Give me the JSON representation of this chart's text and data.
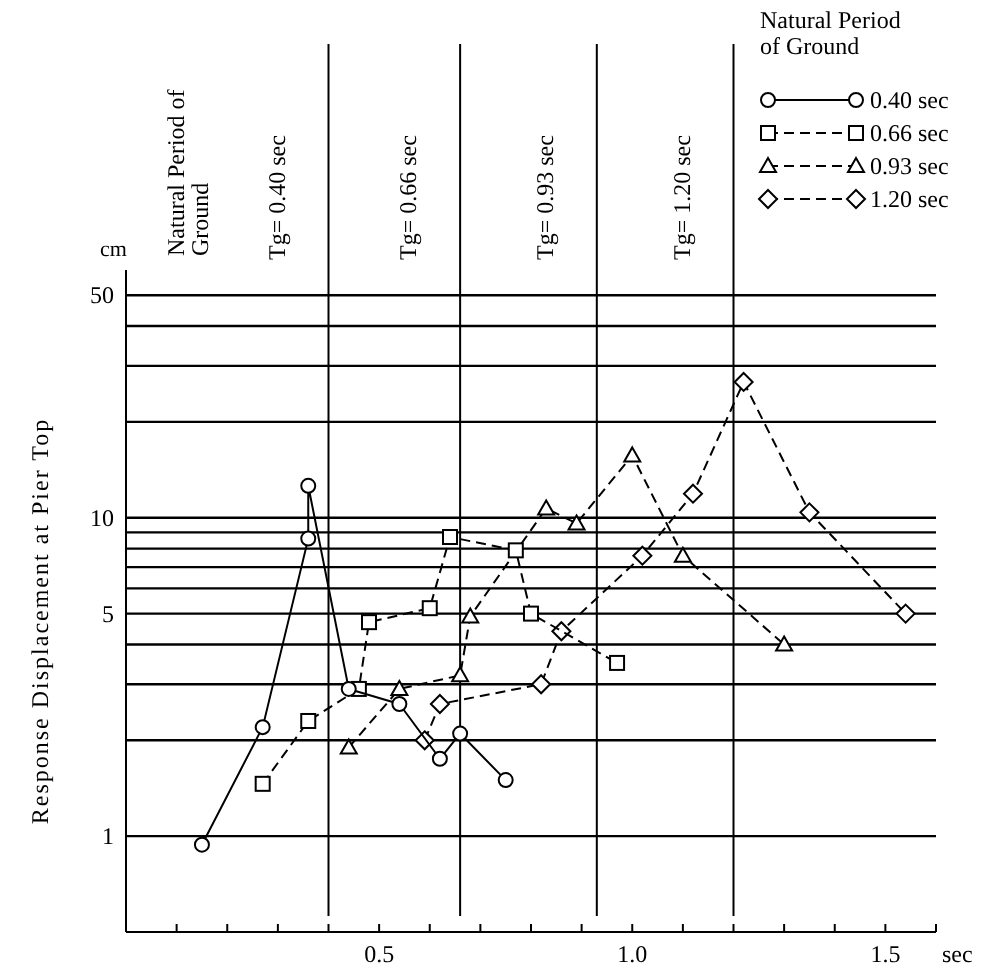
{
  "chart_data": {
    "type": "line",
    "xlabel": "sec",
    "ylabel": "Response Displacement at Pier Top",
    "legend_title": "Natural Period of Ground",
    "log": "y",
    "grid": "y",
    "legend": "top right",
    "xlim": [
      0,
      1.6
    ],
    "xticks": [
      {
        "value": 0.1,
        "label": null
      },
      {
        "value": 0.2,
        "label": null
      },
      {
        "value": 0.3,
        "label": null
      },
      {
        "value": 0.4,
        "label": null
      },
      0.5,
      {
        "value": 0.6,
        "label": null
      },
      {
        "value": 0.7,
        "label": null
      },
      {
        "value": 0.8,
        "label": null
      },
      {
        "value": 0.9,
        "label": null
      },
      {
        "value": 1,
        "label": "1.0"
      },
      {
        "value": 1.1,
        "label": null
      },
      {
        "value": 1.2,
        "label": null
      },
      {
        "value": 1.3,
        "label": null
      },
      {
        "value": 1.4,
        "label": null
      },
      1.5,
      {
        "value": 1.6,
        "label": null
      }
    ],
    "ylim": [
      0.5,
      60
    ],
    "yticks": [
      1,
      {
        "value": 2,
        "label": null
      },
      {
        "value": 3,
        "label": null
      },
      {
        "value": 4,
        "label": null
      },
      5,
      {
        "value": 6,
        "label": null
      },
      {
        "value": 7,
        "label": null
      },
      {
        "value": 8,
        "label": null
      },
      {
        "value": 9,
        "label": null
      },
      10,
      {
        "value": 20,
        "label": null
      },
      {
        "value": 30,
        "label": null
      },
      {
        "value": 40,
        "label": null
      },
      50
    ],
    "series": [
      {
        "name": "0.40 sec",
        "color": "#000000",
        "marker": "circle",
        "line_style": "solid",
        "x": [
          0.15,
          0.27,
          0.36,
          0.36,
          0.44,
          0.54,
          0.62,
          0.66,
          0.75
        ],
        "values": [
          0.94,
          2.2,
          8.6,
          12.6,
          2.9,
          2.6,
          1.75,
          2.1,
          1.5
        ]
      },
      {
        "name": "0.66 sec",
        "color": "#000000",
        "marker": "square",
        "line_style": "dashed",
        "x": [
          0.27,
          0.36,
          0.46,
          0.48,
          0.6,
          0.64,
          0.77,
          0.8,
          0.97
        ],
        "values": [
          1.46,
          2.3,
          2.9,
          4.7,
          5.2,
          8.7,
          7.9,
          5.0,
          3.5
        ]
      },
      {
        "name": "0.93 sec",
        "color": "#000000",
        "marker": "triangle",
        "line_style": "dashed",
        "x": [
          0.44,
          0.54,
          0.66,
          0.68,
          0.83,
          0.89,
          1.0,
          1.1,
          1.3
        ],
        "values": [
          1.9,
          2.9,
          3.2,
          4.9,
          10.7,
          9.6,
          15.7,
          7.6,
          4.0
        ]
      },
      {
        "name": "1.20 sec",
        "color": "#000000",
        "marker": "diamond",
        "line_style": "dashed",
        "x": [
          0.59,
          0.62,
          0.82,
          0.86,
          1.02,
          1.12,
          1.22,
          1.35,
          1.54
        ],
        "values": [
          2.0,
          2.6,
          3.0,
          4.4,
          7.6,
          11.9,
          26.7,
          10.4,
          5.0
        ]
      }
    ],
    "ref_lines": [
      {
        "axis": "x",
        "value": 0.4,
        "label": "Tg= 0.40 sec"
      },
      {
        "axis": "x",
        "value": 0.66,
        "label": "Tg= 0.66 sec"
      },
      {
        "axis": "x",
        "value": 0.93,
        "label": "Tg= 0.93 sec"
      },
      {
        "axis": "x",
        "value": 1.2,
        "label": "Tg= 1.20 sec"
      }
    ],
    "annotations": [
      "Natural Period of Ground",
      "cm"
    ]
  }
}
